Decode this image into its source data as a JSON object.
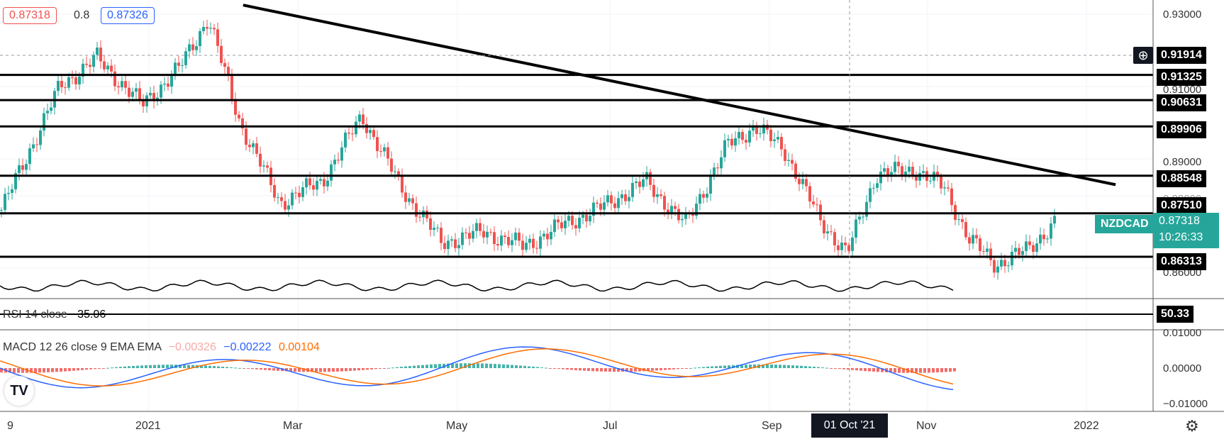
{
  "header": {
    "ohlc_left": "0.87318",
    "step": "0.8",
    "ohlc_right": "0.87326"
  },
  "price_axis": {
    "ticks": [
      "0.93000",
      "0.91000",
      "0.89000",
      "0.88000",
      "0.86000"
    ],
    "levels": [
      "0.91914",
      "0.91325",
      "0.90631",
      "0.89906",
      "0.88548",
      "0.87510",
      "0.86313"
    ],
    "symbol": "NZDCAD",
    "last_price": "0.87318",
    "countdown": "10:26:33"
  },
  "rsi": {
    "label": "RSI 14 close",
    "value": "35.06",
    "axis_value": "50.33"
  },
  "macd": {
    "label": "MACD 12 26 close 9 EMA EMA",
    "hist": "−0.00326",
    "macd": "−0.00222",
    "signal": "0.00104",
    "ticks": [
      "0.01000",
      "0.00000",
      "−0.01000"
    ]
  },
  "time_axis": {
    "labels": [
      "9",
      "2021",
      "Mar",
      "May",
      "Jul",
      "Sep",
      "Nov",
      "2022"
    ],
    "crosshair_label": "01 Oct '21"
  },
  "colors": {
    "up": "#26a69a",
    "down": "#ef5350",
    "macd_line": "#2962ff",
    "signal_line": "#ff6d00",
    "label_bg": "#000000",
    "symbol_bg": "#26a69a"
  },
  "chart_data": {
    "type": "candlestick",
    "symbol": "NZDCAD",
    "timeframe": "daily",
    "horizontal_levels": [
      0.91325,
      0.90631,
      0.89906,
      0.88548,
      0.8751,
      0.86313
    ],
    "trendline": {
      "from": {
        "date": "2021-03-01",
        "price": 0.9325
      },
      "to": {
        "date": "2021-12-31",
        "price": 0.883
      }
    },
    "close_path": [
      {
        "date": "2020-12-10",
        "price": 0.876
      },
      {
        "date": "2021-01-01",
        "price": 0.91
      },
      {
        "date": "2021-01-15",
        "price": 0.918
      },
      {
        "date": "2021-02-01",
        "price": 0.905
      },
      {
        "date": "2021-02-15",
        "price": 0.915
      },
      {
        "date": "2021-02-26",
        "price": 0.929
      },
      {
        "date": "2021-03-10",
        "price": 0.9
      },
      {
        "date": "2021-03-25",
        "price": 0.878
      },
      {
        "date": "2021-04-10",
        "price": 0.884
      },
      {
        "date": "2021-04-25",
        "price": 0.902
      },
      {
        "date": "2021-05-10",
        "price": 0.882
      },
      {
        "date": "2021-05-25",
        "price": 0.867
      },
      {
        "date": "2021-06-10",
        "price": 0.87
      },
      {
        "date": "2021-06-25",
        "price": 0.866
      },
      {
        "date": "2021-07-10",
        "price": 0.872
      },
      {
        "date": "2021-07-25",
        "price": 0.877
      },
      {
        "date": "2021-08-10",
        "price": 0.884
      },
      {
        "date": "2021-08-25",
        "price": 0.872
      },
      {
        "date": "2021-09-10",
        "price": 0.894
      },
      {
        "date": "2021-09-20",
        "price": 0.899
      },
      {
        "date": "2021-10-01",
        "price": 0.893
      },
      {
        "date": "2021-10-15",
        "price": 0.873
      },
      {
        "date": "2021-10-25",
        "price": 0.864
      },
      {
        "date": "2021-11-05",
        "price": 0.886
      },
      {
        "date": "2021-11-20",
        "price": 0.887
      },
      {
        "date": "2021-12-01",
        "price": 0.882
      },
      {
        "date": "2021-12-10",
        "price": 0.868
      },
      {
        "date": "2021-12-20",
        "price": 0.861
      },
      {
        "date": "2022-01-01",
        "price": 0.865
      },
      {
        "date": "2022-01-12",
        "price": 0.8732
      }
    ]
  }
}
